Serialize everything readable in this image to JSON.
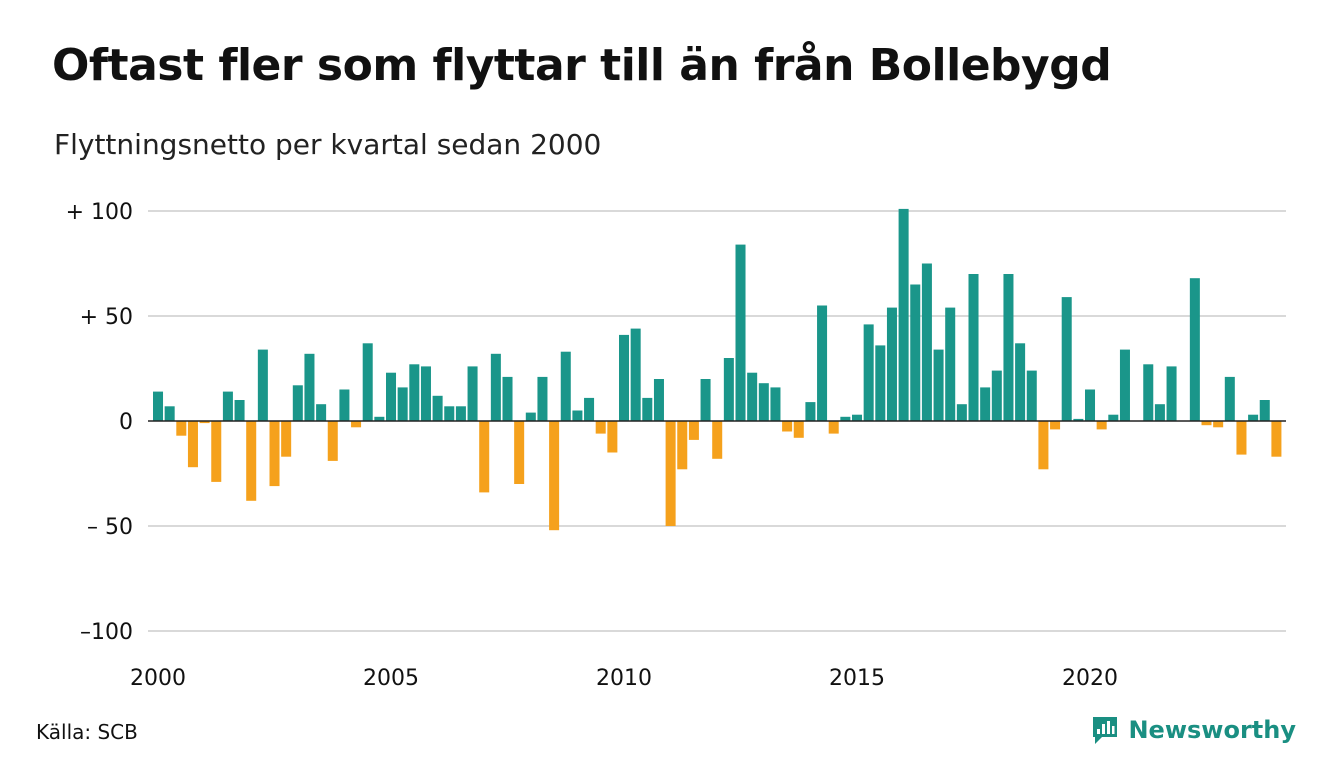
{
  "title": "Oftast fler som flyttar till än från Bollebygd",
  "subtitle": "Flyttningsnetto per kvartal sedan 2000",
  "source": "Källa: SCB",
  "brand": "Newsworthy",
  "colors": {
    "positive": "#1a968a",
    "negative": "#f5a11c",
    "grid": "#d9d9d9",
    "zero": "#222222",
    "brand": "#1a8f82"
  },
  "chart_data": {
    "type": "bar",
    "title": "Oftast fler som flyttar till än från Bollebygd",
    "subtitle": "Flyttningsnetto per kvartal sedan 2000",
    "xlabel": "",
    "ylabel": "",
    "ylim": [
      -100,
      100
    ],
    "y_ticks": [
      100,
      50,
      0,
      -50,
      -100
    ],
    "y_tick_labels": [
      "+ 100",
      "+  50",
      "0",
      "– 50",
      "–100"
    ],
    "x_tick_labels": [
      "2000",
      "2005",
      "2010",
      "2015",
      "2020"
    ],
    "grid": true,
    "legend": "none",
    "categories": [
      "2000 Q1",
      "2000 Q2",
      "2000 Q3",
      "2000 Q4",
      "2001 Q1",
      "2001 Q2",
      "2001 Q3",
      "2001 Q4",
      "2002 Q1",
      "2002 Q2",
      "2002 Q3",
      "2002 Q4",
      "2003 Q1",
      "2003 Q2",
      "2003 Q3",
      "2003 Q4",
      "2004 Q1",
      "2004 Q2",
      "2004 Q3",
      "2004 Q4",
      "2005 Q1",
      "2005 Q2",
      "2005 Q3",
      "2005 Q4",
      "2006 Q1",
      "2006 Q2",
      "2006 Q3",
      "2006 Q4",
      "2007 Q1",
      "2007 Q2",
      "2007 Q3",
      "2007 Q4",
      "2008 Q1",
      "2008 Q2",
      "2008 Q3",
      "2008 Q4",
      "2009 Q1",
      "2009 Q2",
      "2009 Q3",
      "2009 Q4",
      "2010 Q1",
      "2010 Q2",
      "2010 Q3",
      "2010 Q4",
      "2011 Q1",
      "2011 Q2",
      "2011 Q3",
      "2011 Q4",
      "2012 Q1",
      "2012 Q2",
      "2012 Q3",
      "2012 Q4",
      "2013 Q1",
      "2013 Q2",
      "2013 Q3",
      "2013 Q4",
      "2014 Q1",
      "2014 Q2",
      "2014 Q3",
      "2014 Q4",
      "2015 Q1",
      "2015 Q2",
      "2015 Q3",
      "2015 Q4",
      "2016 Q1",
      "2016 Q2",
      "2016 Q3",
      "2016 Q4",
      "2017 Q1",
      "2017 Q2",
      "2017 Q3",
      "2017 Q4",
      "2018 Q1",
      "2018 Q2",
      "2018 Q3",
      "2018 Q4",
      "2019 Q1",
      "2019 Q2",
      "2019 Q3",
      "2019 Q4",
      "2020 Q1",
      "2020 Q2",
      "2020 Q3",
      "2020 Q4",
      "2021 Q1",
      "2021 Q2",
      "2021 Q3",
      "2021 Q4",
      "2022 Q1",
      "2022 Q2",
      "2022 Q3",
      "2022 Q4",
      "2023 Q1",
      "2023 Q2",
      "2023 Q3",
      "2023 Q4",
      "2024 Q1",
      "2024 Q2",
      "2024 Q3"
    ],
    "values": [
      14,
      7,
      -7,
      -22,
      -1,
      -29,
      14,
      10,
      -38,
      34,
      -31,
      -17,
      17,
      32,
      8,
      -19,
      15,
      -3,
      37,
      2,
      23,
      16,
      27,
      26,
      12,
      7,
      7,
      26,
      -34,
      32,
      21,
      -30,
      4,
      21,
      -52,
      33,
      5,
      11,
      -6,
      -15,
      41,
      44,
      11,
      20,
      -50,
      -23,
      -9,
      20,
      -18,
      30,
      84,
      23,
      18,
      16,
      -5,
      -8,
      9,
      55,
      -6,
      2,
      3,
      46,
      36,
      54,
      101,
      65,
      75,
      34,
      54,
      8,
      70,
      16,
      24,
      70,
      37,
      24,
      -23,
      -4,
      59,
      1,
      15,
      -4,
      3,
      34,
      0,
      27,
      8,
      26,
      0,
      68,
      -2,
      -3,
      21,
      -16,
      3,
      10,
      -17,
      0,
      0
    ]
  }
}
